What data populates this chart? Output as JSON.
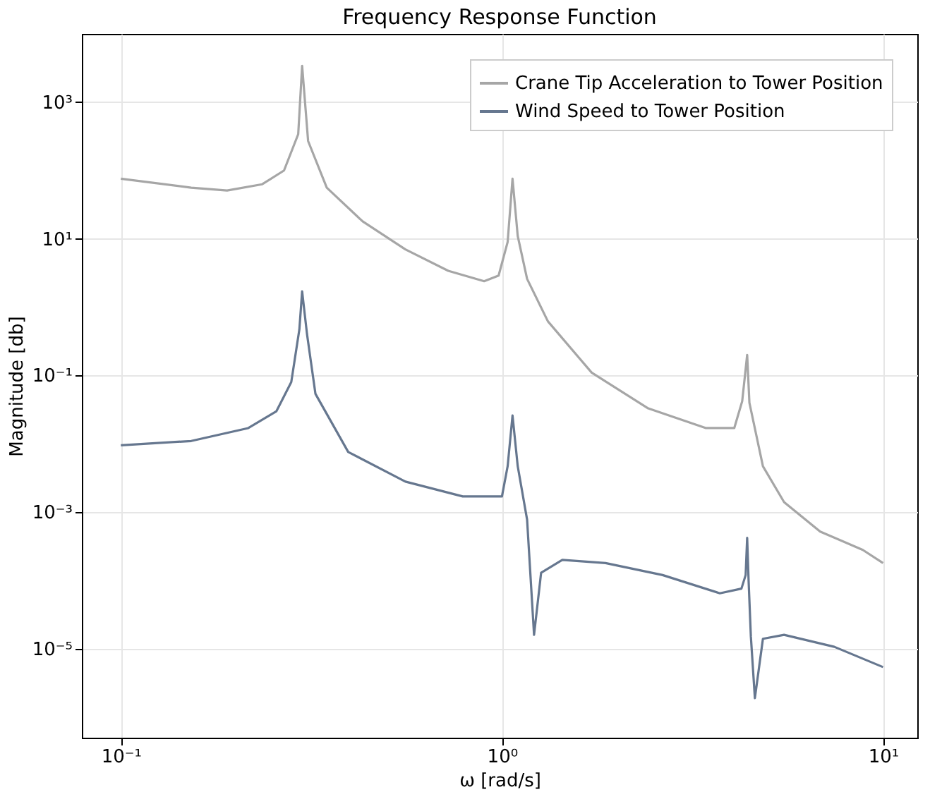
{
  "chart_data": {
    "type": "line",
    "title": "Frequency Response Function",
    "xlabel": "ω [rad/s]",
    "ylabel": "Magnitude [db]",
    "log": "xy",
    "grid": true,
    "legend": "top right",
    "line_style": "solid",
    "marker": "none",
    "xlim": [
      0.079,
      12.3
    ],
    "xticks": [
      {
        "value": 0.1,
        "label": "10⁻¹"
      },
      {
        "value": 1,
        "label": "10⁰"
      },
      {
        "value": 10,
        "label": "10¹"
      }
    ],
    "ylim": [
      5e-07,
      10000
    ],
    "yticks": [
      {
        "value": 1e-05,
        "label": "10⁻⁵"
      },
      {
        "value": 0.001,
        "label": "10⁻³"
      },
      {
        "value": 0.1,
        "label": "10⁻¹"
      },
      {
        "value": 10,
        "label": "10¹"
      },
      {
        "value": 1000,
        "label": "10³"
      }
    ],
    "series": [
      {
        "name": "Crane Tip Acceleration to Tower Position",
        "color": "#a6a6a6",
        "x": [
          0.1,
          0.153,
          0.19,
          0.235,
          0.268,
          0.292,
          0.299,
          0.31,
          0.347,
          0.431,
          0.558,
          0.723,
          0.898,
          0.98,
          1.035,
          1.066,
          1.1,
          1.164,
          1.32,
          1.72,
          2.42,
          3.43,
          4.07,
          4.27,
          4.4,
          4.46,
          4.84,
          5.5,
          6.84,
          8.85,
          10
        ],
        "values": [
          76,
          56,
          51,
          63,
          100,
          340,
          3400,
          270,
          56,
          18,
          7,
          3.4,
          2.4,
          2.9,
          9,
          76,
          11,
          2.6,
          0.62,
          0.11,
          0.033,
          0.017,
          0.017,
          0.042,
          0.2,
          0.04,
          0.0047,
          0.0014,
          0.00052,
          0.00028,
          0.00018
        ]
      },
      {
        "name": "Wind Speed to Tower Position",
        "color": "#66778f",
        "x": [
          0.1,
          0.153,
          0.216,
          0.256,
          0.28,
          0.294,
          0.299,
          0.308,
          0.324,
          0.395,
          0.558,
          0.789,
          1.0,
          1.035,
          1.066,
          1.1,
          1.164,
          1.214,
          1.267,
          1.44,
          1.87,
          2.64,
          3.73,
          4.25,
          4.36,
          4.4,
          4.44,
          4.5,
          4.61,
          4.84,
          5.5,
          7.45,
          10
        ],
        "values": [
          0.0095,
          0.011,
          0.017,
          0.03,
          0.08,
          0.47,
          1.7,
          0.4,
          0.054,
          0.0076,
          0.0028,
          0.0017,
          0.0017,
          0.0047,
          0.026,
          0.0047,
          0.00078,
          1.6e-05,
          0.00013,
          0.0002,
          0.00018,
          0.00012,
          6.5e-05,
          7.6e-05,
          0.00012,
          0.00042,
          9.5e-05,
          1.5e-05,
          1.9e-06,
          1.4e-05,
          1.6e-05,
          1.07e-05,
          5.4e-06
        ]
      }
    ]
  }
}
